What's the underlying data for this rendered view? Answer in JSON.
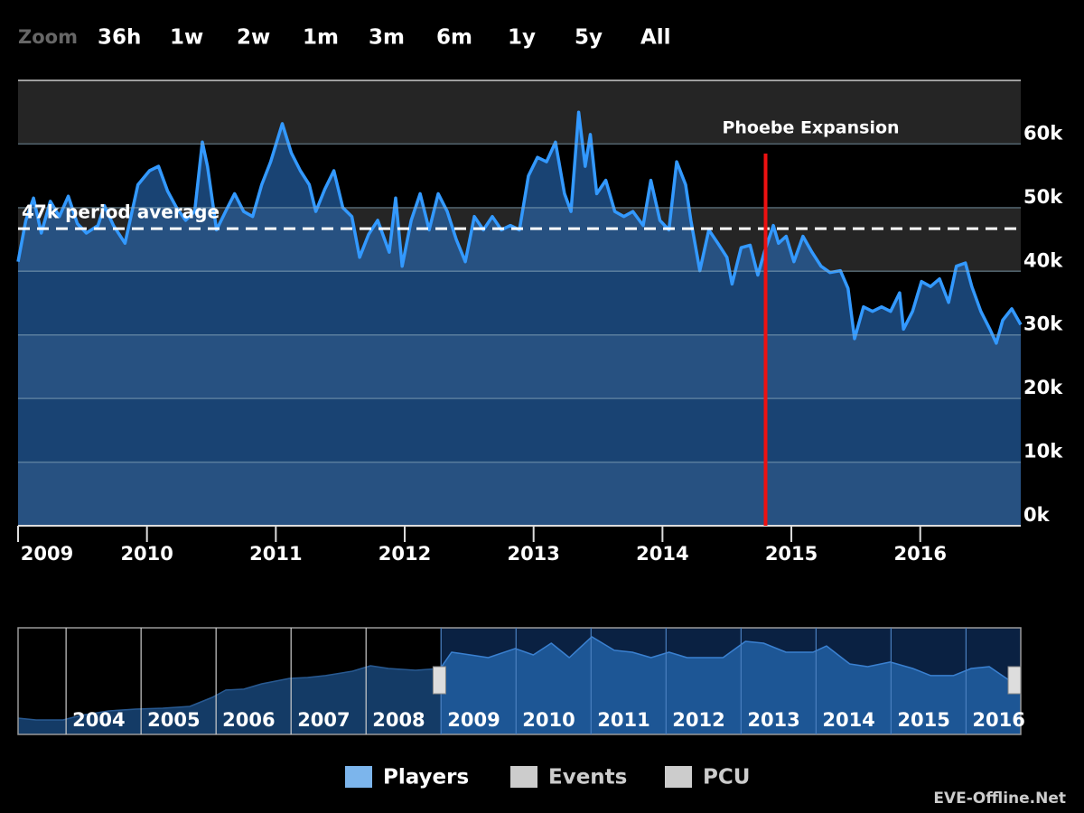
{
  "chart_data": [
    {
      "type": "area",
      "range_selector": {
        "label": "Zoom",
        "buttons": [
          "36h",
          "1w",
          "2w",
          "1m",
          "3m",
          "6m",
          "1y",
          "5y",
          "All"
        ]
      },
      "x": [
        2009.0,
        2009.06,
        2009.12,
        2009.18,
        2009.25,
        2009.32,
        2009.39,
        2009.46,
        2009.53,
        2009.62,
        2009.67,
        2009.74,
        2009.83,
        2009.93,
        2010.02,
        2010.09,
        2010.16,
        2010.23,
        2010.3,
        2010.37,
        2010.43,
        2010.47,
        2010.54,
        2010.61,
        2010.68,
        2010.75,
        2010.82,
        2010.89,
        2010.96,
        2011.05,
        2011.12,
        2011.19,
        2011.26,
        2011.31,
        2011.38,
        2011.45,
        2011.52,
        2011.59,
        2011.65,
        2011.72,
        2011.79,
        2011.88,
        2011.93,
        2011.98,
        2012.05,
        2012.12,
        2012.19,
        2012.26,
        2012.33,
        2012.4,
        2012.47,
        2012.54,
        2012.61,
        2012.68,
        2012.75,
        2012.82,
        2012.89,
        2012.96,
        2013.03,
        2013.1,
        2013.17,
        2013.24,
        2013.29,
        2013.35,
        2013.4,
        2013.44,
        2013.49,
        2013.56,
        2013.63,
        2013.7,
        2013.77,
        2013.85,
        2013.91,
        2013.98,
        2014.05,
        2014.11,
        2014.18,
        2014.22,
        2014.29,
        2014.36,
        2014.43,
        2014.5,
        2014.54,
        2014.61,
        2014.68,
        2014.74,
        2014.79,
        2014.86,
        2014.9,
        2014.96,
        2015.02,
        2015.09,
        2015.16,
        2015.23,
        2015.3,
        2015.38,
        2015.44,
        2015.49,
        2015.56,
        2015.63,
        2015.7,
        2015.77,
        2015.84,
        2015.87,
        2015.94,
        2016.01,
        2016.08,
        2016.15,
        2016.22,
        2016.28,
        2016.35,
        2016.4,
        2016.47,
        2016.54,
        2016.59,
        2016.64,
        2016.71,
        2016.78
      ],
      "series": [
        {
          "name": "Players",
          "color": "#3399ff",
          "fill": "#2a6fbf",
          "legend_color": "#7cb5ec",
          "values": [
            41500,
            48000,
            51500,
            46000,
            51000,
            48600,
            51800,
            47500,
            46000,
            47200,
            50300,
            47200,
            44400,
            53600,
            55800,
            56500,
            52600,
            50000,
            48000,
            49400,
            60300,
            56500,
            46500,
            49400,
            52200,
            49400,
            48600,
            53600,
            57200,
            63200,
            58600,
            55800,
            53600,
            49400,
            52900,
            55800,
            50000,
            48600,
            42200,
            45800,
            48000,
            43000,
            51500,
            40800,
            48000,
            52200,
            46500,
            52200,
            49400,
            45000,
            41500,
            48600,
            46500,
            48600,
            46500,
            47200,
            46500,
            55000,
            57900,
            57200,
            60300,
            52200,
            49400,
            65000,
            56500,
            61500,
            52200,
            54300,
            49400,
            48600,
            49400,
            47200,
            54300,
            48000,
            46500,
            57200,
            53600,
            48000,
            40100,
            46500,
            44400,
            42200,
            38000,
            43700,
            44100,
            39400,
            43000,
            47200,
            44400,
            45500,
            41500,
            45500,
            43000,
            40800,
            39800,
            40100,
            37300,
            29400,
            34400,
            33700,
            34400,
            33700,
            36600,
            30900,
            33700,
            38400,
            37600,
            38800,
            35100,
            40800,
            41300,
            37600,
            33700,
            30900,
            28700,
            32300,
            34100,
            31600
          ]
        },
        {
          "name": "Events",
          "color": "#cccccc",
          "visible": false
        },
        {
          "name": "PCU",
          "color": "#cccccc",
          "visible": false
        }
      ],
      "xlim": [
        2009,
        2016.78
      ],
      "ylim": [
        0,
        70000
      ],
      "xticks": [
        2009,
        2010,
        2011,
        2012,
        2013,
        2014,
        2015,
        2016
      ],
      "yticks": [
        {
          "value": 0,
          "label": "0k"
        },
        {
          "value": 10000,
          "label": "10k"
        },
        {
          "value": 20000,
          "label": "20k"
        },
        {
          "value": 30000,
          "label": "30k"
        },
        {
          "value": 40000,
          "label": "40k"
        },
        {
          "value": 50000,
          "label": "50k"
        },
        {
          "value": 60000,
          "label": "60k"
        }
      ],
      "plot_bands": true,
      "average": {
        "value": 46700,
        "label": "47k period average"
      },
      "event": {
        "x": 2014.8,
        "label": "Phoebe Expansion",
        "color": "#ee1111"
      },
      "credit": "EVE-Offline.Net"
    },
    {
      "type": "area",
      "x": [
        2003.36,
        2003.6,
        2003.96,
        2004.2,
        2004.57,
        2004.93,
        2005.29,
        2005.65,
        2005.95,
        2006.13,
        2006.37,
        2006.61,
        2006.98,
        2007.22,
        2007.46,
        2007.82,
        2008.06,
        2008.3,
        2008.66,
        2008.99,
        2009.14,
        2009.39,
        2009.63,
        2009.99,
        2010.23,
        2010.47,
        2010.71,
        2011.01,
        2011.31,
        2011.55,
        2011.8,
        2012.04,
        2012.28,
        2012.76,
        2013.06,
        2013.3,
        2013.6,
        2013.96,
        2014.14,
        2014.45,
        2014.69,
        2014.99,
        2015.29,
        2015.53,
        2015.83,
        2016.07,
        2016.31,
        2016.61,
        2016.73
      ],
      "series": [
        {
          "name": "Players",
          "color": "#3a80d0",
          "fill": "#1f5a9a",
          "values": [
            10700,
            9500,
            9500,
            12500,
            15400,
            16600,
            17200,
            18400,
            24300,
            29100,
            29700,
            33200,
            36800,
            37400,
            38600,
            41500,
            45100,
            43300,
            42100,
            43300,
            54000,
            52200,
            50400,
            56400,
            52200,
            59900,
            50400,
            64100,
            55200,
            54000,
            50400,
            54000,
            50400,
            50400,
            61100,
            59900,
            54000,
            54000,
            58100,
            46300,
            44500,
            47500,
            43300,
            38600,
            38600,
            43300,
            44500,
            34400,
            32600
          ]
        }
      ],
      "xlim": [
        2003.36,
        2016.73
      ],
      "ylim": [
        0,
        70000
      ],
      "xticks": [
        2004,
        2005,
        2006,
        2007,
        2008,
        2009,
        2010,
        2011,
        2012,
        2013,
        2014,
        2015,
        2016
      ],
      "selection": [
        2008.99,
        2016.73
      ]
    }
  ]
}
